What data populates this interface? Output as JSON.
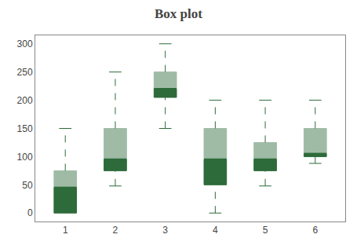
{
  "chart_data": {
    "type": "box",
    "title": "Box plot",
    "x": [
      1,
      2,
      3,
      4,
      5,
      6
    ],
    "whislo": [
      5,
      48,
      150,
      0,
      48,
      88
    ],
    "q1": [
      0,
      75,
      205,
      50,
      75,
      100
    ],
    "median": [
      45,
      95,
      220,
      95,
      95,
      105
    ],
    "q3": [
      75,
      150,
      250,
      150,
      125,
      150
    ],
    "whishi": [
      150,
      250,
      300,
      200,
      200,
      200
    ],
    "color": "#2d6b3a",
    "xlim": [
      0.4,
      6.6
    ],
    "xticks": [
      1,
      2,
      3,
      4,
      5,
      6
    ],
    "ylim": [
      -15,
      315
    ],
    "yticks": [
      0,
      50,
      100,
      150,
      200,
      250,
      300
    ],
    "grid": false
  }
}
